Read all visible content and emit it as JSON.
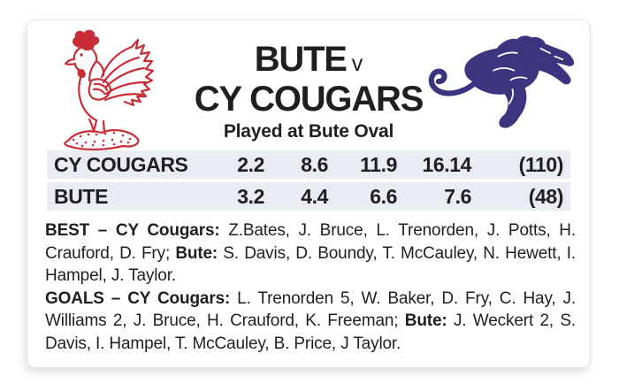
{
  "colors": {
    "text": "#211e1f",
    "accent_red": "#c92d35",
    "accent_blue": "#3b3580",
    "row_background": "#e9edf3",
    "card_background": "#ffffff",
    "page_background": "#ffffff",
    "card_border": "#e3e4e6"
  },
  "header": {
    "home_team": "BUTE",
    "versus": "v",
    "away_team": "CY COUGARS",
    "venue": "Played at Bute Oval"
  },
  "logos": {
    "home": "rooster-logo",
    "away": "cougar-logo"
  },
  "scoreboard": {
    "rows": [
      {
        "team": "CY COUGARS",
        "quarters": [
          "2.2",
          "8.6",
          "11.9",
          "16.14"
        ],
        "total": "(110)"
      },
      {
        "team": "BUTE",
        "quarters": [
          "3.2",
          "4.4",
          "6.6",
          "7.6"
        ],
        "total": "(48)"
      }
    ]
  },
  "best": {
    "segments": [
      {
        "text": "BEST – CY Cougars: ",
        "bold": true
      },
      {
        "text": "Z.Bates, J. Bruce, L. Trenorden, J. Potts, H. Crauford, D. Fry; ",
        "bold": false
      },
      {
        "text": "Bute: ",
        "bold": true
      },
      {
        "text": "S. Davis, D. Boundy, T. McCauley, N. Hewett, I. Hampel, J. Taylor.",
        "bold": false
      }
    ]
  },
  "goals": {
    "segments": [
      {
        "text": "GOALS – CY Cougars: ",
        "bold": true
      },
      {
        "text": "L. Trenorden 5, W. Baker, D. Fry, C. Hay, J. Williams 2, J. Bruce, H. Crauford, K. Freeman; ",
        "bold": false
      },
      {
        "text": "Bute: ",
        "bold": true
      },
      {
        "text": "J. Weckert 2, S. Davis, I. Hampel, T. McCauley, B. Price, J Taylor.",
        "bold": false
      }
    ]
  }
}
